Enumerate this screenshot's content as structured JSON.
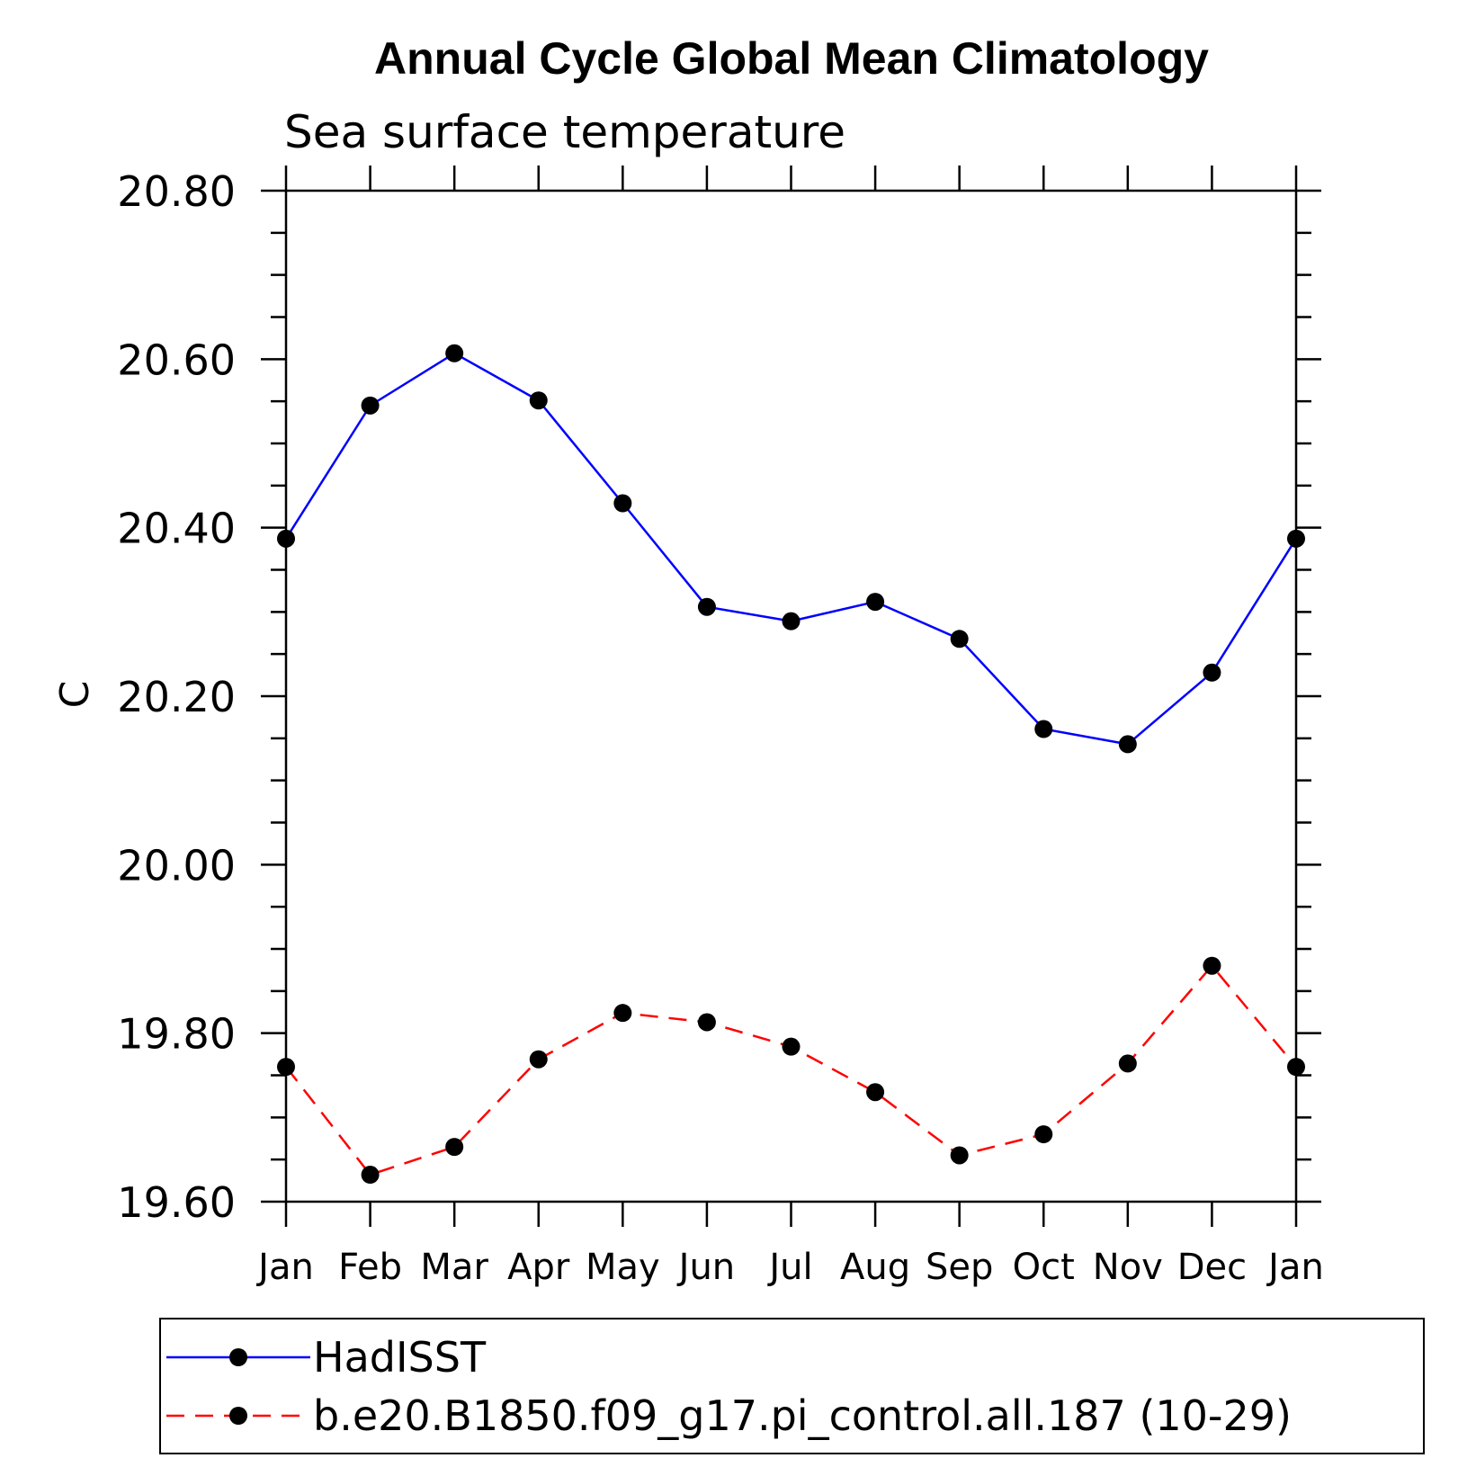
{
  "chart_data": {
    "type": "line",
    "title": "Annual Cycle Global Mean Climatology",
    "subtitle": "Sea surface temperature",
    "ylabel": "C",
    "xlabel": "",
    "categories": [
      "Jan",
      "Feb",
      "Mar",
      "Apr",
      "May",
      "Jun",
      "Jul",
      "Aug",
      "Sep",
      "Oct",
      "Nov",
      "Dec",
      "Jan"
    ],
    "ylim": [
      19.6,
      20.8
    ],
    "yticks": [
      "19.60",
      "19.80",
      "20.00",
      "20.20",
      "20.40",
      "20.60",
      "20.80"
    ],
    "series": [
      {
        "name": "HadISST",
        "color": "#0000ff",
        "dash": "solid",
        "values": [
          20.387,
          20.545,
          20.607,
          20.551,
          20.429,
          20.306,
          20.289,
          20.312,
          20.268,
          20.161,
          20.143,
          20.228,
          20.387
        ]
      },
      {
        "name": "b.e20.B1850.f09_g17.pi_control.all.187 (10-29)",
        "color": "#ff0000",
        "dash": "dashed",
        "values": [
          19.76,
          19.632,
          19.665,
          19.769,
          19.824,
          19.813,
          19.784,
          19.73,
          19.655,
          19.68,
          19.764,
          19.88,
          19.76
        ]
      }
    ],
    "grid": false,
    "legend_position": "bottom"
  }
}
